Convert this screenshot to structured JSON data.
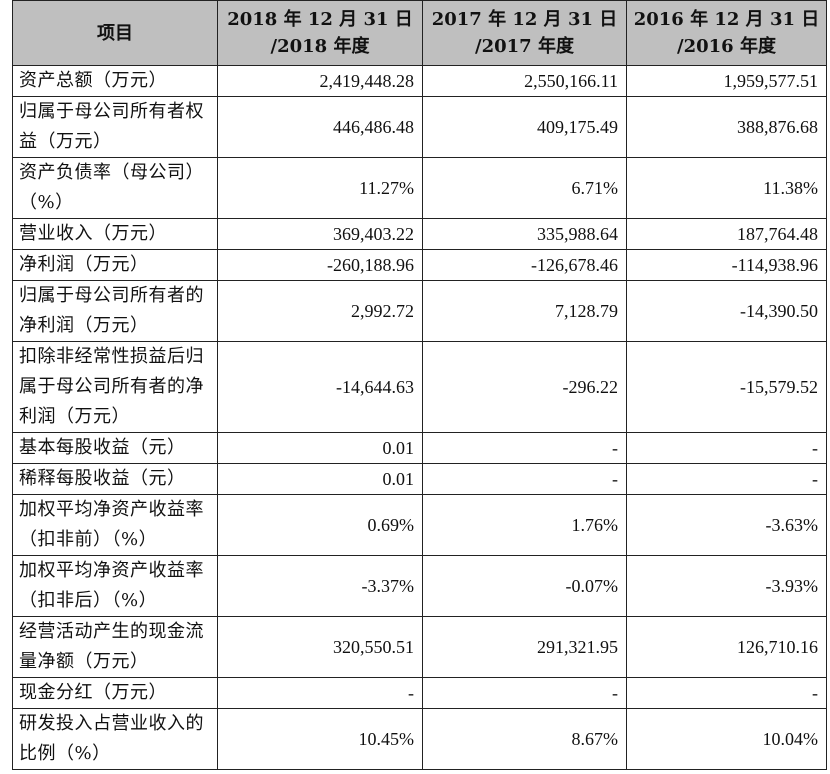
{
  "header": {
    "item_label": "项目",
    "columns": [
      {
        "line1": "2018 年 12 月 31 日",
        "line2": "/2018 年度"
      },
      {
        "line1": "2017 年 12 月 31 日",
        "line2": "/2017 年度"
      },
      {
        "line1": "2016 年 12 月 31 日",
        "line2": "/2016 年度"
      }
    ]
  },
  "rows": [
    {
      "label": "资产总额（万元）",
      "values": [
        "2,419,448.28",
        "2,550,166.11",
        "1,959,577.51"
      ]
    },
    {
      "label": "归属于母公司所有者权益（万元）",
      "values": [
        "446,486.48",
        "409,175.49",
        "388,876.68"
      ]
    },
    {
      "label": "资产负债率（母公司）（%）",
      "values": [
        "11.27%",
        "6.71%",
        "11.38%"
      ]
    },
    {
      "label": "营业收入（万元）",
      "values": [
        "369,403.22",
        "335,988.64",
        "187,764.48"
      ]
    },
    {
      "label": "净利润（万元）",
      "values": [
        "-260,188.96",
        "-126,678.46",
        "-114,938.96"
      ]
    },
    {
      "label": "归属于母公司所有者的净利润（万元）",
      "values": [
        "2,992.72",
        "7,128.79",
        "-14,390.50"
      ]
    },
    {
      "label": "扣除非经常性损益后归属于母公司所有者的净利润（万元）",
      "values": [
        "-14,644.63",
        "-296.22",
        "-15,579.52"
      ]
    },
    {
      "label": "基本每股收益（元）",
      "values": [
        "0.01",
        "-",
        "-"
      ]
    },
    {
      "label": "稀释每股收益（元）",
      "values": [
        "0.01",
        "-",
        "-"
      ]
    },
    {
      "label": "加权平均净资产收益率（扣非前）（%）",
      "values": [
        "0.69%",
        "1.76%",
        "-3.63%"
      ]
    },
    {
      "label": "加权平均净资产收益率（扣非后）（%）",
      "values": [
        "-3.37%",
        "-0.07%",
        "-3.93%"
      ]
    },
    {
      "label": "经营活动产生的现金流量净额（万元）",
      "values": [
        "320,550.51",
        "291,321.95",
        "126,710.16"
      ]
    },
    {
      "label": "现金分红（万元）",
      "values": [
        "-",
        "-",
        "-"
      ]
    },
    {
      "label": "研发投入占营业收入的比例（%）",
      "values": [
        "10.45%",
        "8.67%",
        "10.04%"
      ]
    }
  ]
}
